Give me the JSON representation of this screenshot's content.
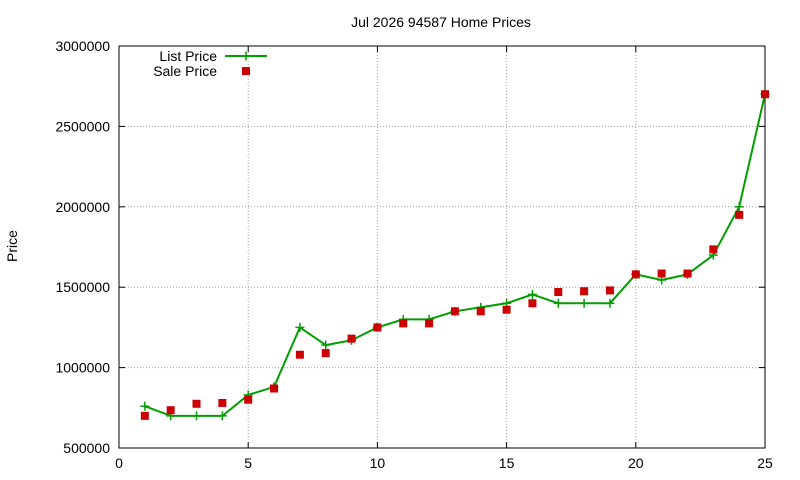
{
  "chart_data": {
    "type": "line",
    "title": "Jul 2026 94587 Home Prices",
    "xlabel": "",
    "ylabel": "Price",
    "xlim": [
      0,
      25
    ],
    "ylim": [
      500000,
      3000000
    ],
    "xticks": [
      0,
      5,
      10,
      15,
      20,
      25
    ],
    "yticks": [
      500000,
      1000000,
      1500000,
      2000000,
      2500000,
      3000000
    ],
    "x_tick_labels": [
      "0",
      "5",
      "10",
      "15",
      "20",
      "25"
    ],
    "y_tick_labels": [
      "500000",
      "1000000",
      "1500000",
      "2000000",
      "2500000",
      "3000000"
    ],
    "grid": true,
    "legend_position": "top-left",
    "x": [
      1,
      2,
      3,
      4,
      5,
      6,
      7,
      8,
      9,
      10,
      11,
      12,
      13,
      14,
      15,
      16,
      17,
      18,
      19,
      20,
      21,
      22,
      23,
      24,
      25
    ],
    "series": [
      {
        "name": "List Price",
        "style": "line-cross",
        "color": "#009e00",
        "values": [
          760000,
          700000,
          700000,
          700000,
          830000,
          880000,
          1250000,
          1140000,
          1170000,
          1250000,
          1300000,
          1300000,
          1350000,
          1375000,
          1400000,
          1455000,
          1400000,
          1400000,
          1400000,
          1580000,
          1545000,
          1580000,
          1700000,
          2000000,
          2700000
        ]
      },
      {
        "name": "Sale Price",
        "style": "square",
        "color": "#cc0000",
        "values": [
          700000,
          735000,
          775000,
          780000,
          800000,
          870000,
          1080000,
          1090000,
          1180000,
          1250000,
          1275000,
          1275000,
          1350000,
          1350000,
          1360000,
          1400000,
          1470000,
          1475000,
          1480000,
          1580000,
          1585000,
          1585000,
          1735000,
          1950000,
          2700000
        ]
      }
    ]
  }
}
